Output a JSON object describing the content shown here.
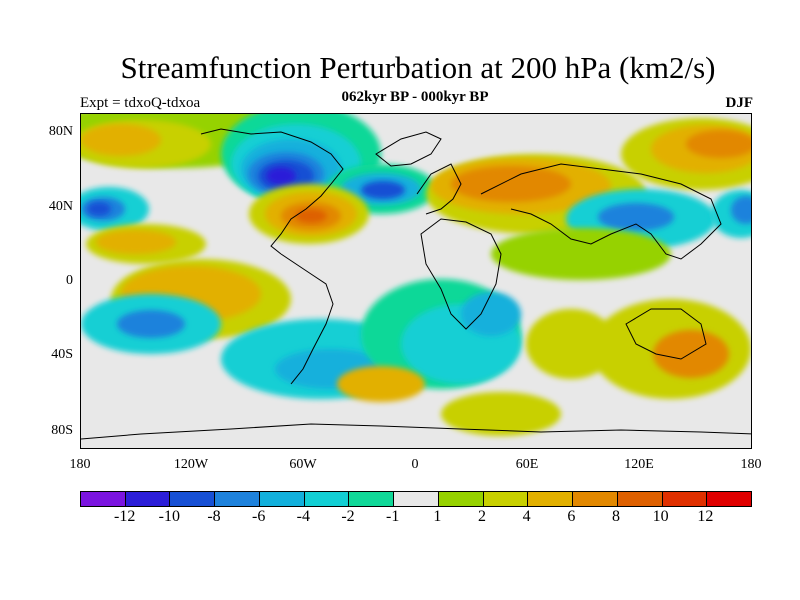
{
  "title": "Streamfunction Perturbation at 200 hPa (km2/s)",
  "subtitle": "062kyr BP - 000kyr BP",
  "left_string": "Expt = tdxoQ-tdxoa",
  "right_string": "DJF",
  "lat_labels": [
    "80N",
    "40N",
    "0",
    "40S",
    "80S"
  ],
  "lon_labels": [
    "180",
    "120W",
    "60W",
    "0",
    "60E",
    "120E",
    "180"
  ],
  "colorbar": {
    "labels": [
      "-12",
      "-10",
      "-8",
      "-6",
      "-4",
      "-2",
      "-1",
      "1",
      "2",
      "4",
      "6",
      "8",
      "10",
      "12"
    ],
    "colors": [
      "#7b14e0",
      "#2c1ed8",
      "#1750d4",
      "#1e82dc",
      "#12b0dc",
      "#12cfd4",
      "#10d898",
      "#e8e8e8",
      "#96d200",
      "#c8d000",
      "#e2b000",
      "#e28800",
      "#de6000",
      "#e03000",
      "#e00000"
    ]
  },
  "map_data": {
    "projection": "cylindrical-equidistant",
    "lon_range": [
      -180,
      180
    ],
    "lat_range": [
      -90,
      90
    ],
    "coastlines": true,
    "blobs": [
      {
        "region": "North Atlantic / Canada",
        "level": "-8",
        "color": "#1750d4"
      },
      {
        "region": "Hudson Bay",
        "level": "-10",
        "color": "#2c1ed8"
      },
      {
        "region": "North Pacific west",
        "level": "-8",
        "color": "#1750d4"
      },
      {
        "region": "North Atlantic (40N 60W)",
        "level": "8",
        "color": "#de6000"
      },
      {
        "region": "Eurasia 50N",
        "level": "6",
        "color": "#e28800"
      },
      {
        "region": "Arctic Pacific",
        "level": "8",
        "color": "#de6000"
      },
      {
        "region": "East Asia 40N",
        "level": "-6",
        "color": "#1e82dc"
      },
      {
        "region": "South Pacific",
        "level": "-6",
        "color": "#1e82dc"
      },
      {
        "region": "Southern Indian Ocean",
        "level": "-2",
        "color": "#12cfd4"
      },
      {
        "region": "Australia",
        "level": "6",
        "color": "#e28800"
      },
      {
        "region": "South Atlantic",
        "level": "4",
        "color": "#c8d000"
      },
      {
        "region": "Southern Ocean",
        "level": "2",
        "color": "#96d200"
      }
    ]
  }
}
